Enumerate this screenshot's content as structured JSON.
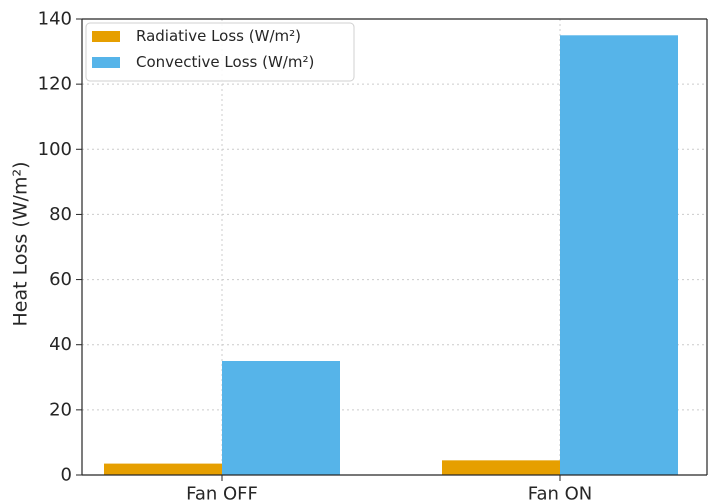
{
  "chart_data": {
    "type": "bar",
    "title": "",
    "xlabel": "",
    "ylabel": "Heat Loss (W/m²)",
    "categories": [
      "Fan OFF",
      "Fan ON"
    ],
    "series": [
      {
        "name": "Radiative Loss (W/m²)",
        "values": [
          3.5,
          4.5
        ],
        "color": "#E69F00"
      },
      {
        "name": "Convective Loss (W/m²)",
        "values": [
          35,
          135
        ],
        "color": "#56B4E9"
      }
    ],
    "ylim": [
      0,
      140
    ],
    "yticks": [
      0,
      20,
      40,
      60,
      80,
      100,
      120,
      140
    ],
    "grid": true,
    "legend_position": "top-left"
  }
}
